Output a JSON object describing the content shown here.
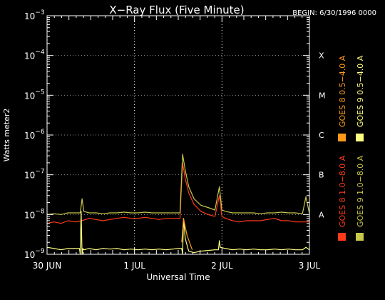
{
  "chart_data": {
    "type": "line",
    "title": "X−Ray Flux (Five Minute)",
    "begin_label": "BEGIN: 6/30/1996 0000",
    "xlabel": "Universal Time",
    "ylabel": "Watts meter2",
    "y_scale": "log",
    "ylim": [
      1e-09,
      0.001
    ],
    "xlim": [
      0,
      3
    ],
    "x_ticks": [
      {
        "value": 0,
        "label": "30 JUN"
      },
      {
        "value": 1,
        "label": "1 JUL"
      },
      {
        "value": 2,
        "label": "2 JUL"
      },
      {
        "value": 3,
        "label": "3 JUL"
      }
    ],
    "y_ticks": [
      {
        "exp": -9,
        "label": "10",
        "sup": "−9"
      },
      {
        "exp": -8,
        "label": "10",
        "sup": "−8"
      },
      {
        "exp": -7,
        "label": "10",
        "sup": "−7"
      },
      {
        "exp": -6,
        "label": "10",
        "sup": "−6"
      },
      {
        "exp": -5,
        "label": "10",
        "sup": "−5"
      },
      {
        "exp": -4,
        "label": "10",
        "sup": "−4"
      },
      {
        "exp": -3,
        "label": "10",
        "sup": "−3"
      }
    ],
    "flare_classes": [
      {
        "label": "A",
        "exp": -8
      },
      {
        "label": "B",
        "exp": -7
      },
      {
        "label": "C",
        "exp": -6
      },
      {
        "label": "M",
        "exp": -5
      },
      {
        "label": "X",
        "exp": -4
      }
    ],
    "grid_x": [
      1,
      2
    ],
    "legend_placement": "right-vertical",
    "legend": [
      {
        "label": "GOES 8 1.0−8.0 A",
        "color": "#ff3b1a"
      },
      {
        "label": "GOES 8 0.5−4.0 A",
        "color": "#ff9a1a"
      },
      {
        "label": "GOES 9 1.0−8.0 A",
        "color": "#c8c84a"
      },
      {
        "label": "GOES 9 0.5−4.0 A",
        "color": "#ffff80"
      }
    ],
    "series": [
      {
        "name": "GOES 8 1.0−8.0 A",
        "color": "#ff3b1a",
        "x": [
          0.0,
          0.08,
          0.16,
          0.24,
          0.32,
          0.4,
          0.48,
          0.56,
          0.64,
          0.72,
          0.8,
          0.88,
          0.96,
          1.04,
          1.12,
          1.2,
          1.28,
          1.36,
          1.44,
          1.52,
          1.55,
          1.58,
          1.62,
          1.68,
          1.76,
          1.84,
          1.92,
          1.97,
          2.0,
          2.04,
          2.12,
          2.2,
          2.28,
          2.36,
          2.44,
          2.52,
          2.6,
          2.68,
          2.76,
          2.84,
          2.92,
          3.0
        ],
        "y": [
          6e-09,
          6.5e-09,
          6e-09,
          7e-09,
          6.5e-09,
          7e-09,
          8e-09,
          7.5e-09,
          7e-09,
          7.5e-09,
          8e-09,
          8.5e-09,
          8e-09,
          8e-09,
          8.5e-09,
          8e-09,
          7.5e-09,
          8e-09,
          8e-09,
          8e-09,
          2e-07,
          8e-08,
          3.5e-08,
          1.8e-08,
          1.2e-08,
          1e-08,
          9e-09,
          3e-08,
          9e-09,
          8e-09,
          7e-09,
          6.5e-09,
          7e-09,
          7e-09,
          7e-09,
          7.5e-09,
          8e-09,
          7e-09,
          7e-09,
          6.5e-09,
          6.5e-09,
          6.5e-09
        ]
      },
      {
        "name": "GOES 8 0.5−4.0 A",
        "color": "#ff9a1a",
        "x": [
          1.54,
          1.56,
          1.6,
          1.66
        ],
        "y": [
          2e-09,
          8e-09,
          3e-09,
          1.3e-09
        ]
      },
      {
        "name": "GOES 9 1.0−8.0 A",
        "color": "#c8c84a",
        "x": [
          0.0,
          0.08,
          0.16,
          0.24,
          0.32,
          0.38,
          0.4,
          0.42,
          0.48,
          0.56,
          0.64,
          0.72,
          0.8,
          0.88,
          0.96,
          1.04,
          1.12,
          1.2,
          1.28,
          1.36,
          1.44,
          1.52,
          1.55,
          1.58,
          1.62,
          1.68,
          1.76,
          1.84,
          1.92,
          1.97,
          2.0,
          2.04,
          2.12,
          2.2,
          2.28,
          2.36,
          2.44,
          2.52,
          2.6,
          2.68,
          2.76,
          2.84,
          2.92,
          2.96,
          3.0
        ],
        "y": [
          1e-08,
          1.05e-08,
          1e-08,
          1.1e-08,
          1.1e-08,
          1.1e-08,
          2.5e-08,
          1.2e-08,
          1.1e-08,
          1.1e-08,
          1.05e-08,
          1.1e-08,
          1.1e-08,
          1.15e-08,
          1.1e-08,
          1.1e-08,
          1.15e-08,
          1.1e-08,
          1.1e-08,
          1.1e-08,
          1.1e-08,
          1.1e-08,
          3.3e-07,
          1.3e-07,
          5e-08,
          2.5e-08,
          1.7e-08,
          1.5e-08,
          1.3e-08,
          5e-08,
          1.3e-08,
          1.2e-08,
          1.1e-08,
          1.1e-08,
          1.1e-08,
          1.1e-08,
          1.05e-08,
          1.1e-08,
          1.1e-08,
          1.15e-08,
          1.1e-08,
          1.1e-08,
          1.05e-08,
          2.8e-08,
          1.05e-08
        ]
      },
      {
        "name": "GOES 9 0.5−4.0 A",
        "color": "#ffff80",
        "x": [
          0.0,
          0.08,
          0.16,
          0.24,
          0.32,
          0.37,
          0.38,
          0.39,
          0.4,
          0.41,
          0.42,
          0.48,
          0.56,
          0.64,
          0.72,
          0.8,
          0.88,
          0.96,
          1.04,
          1.12,
          1.2,
          1.28,
          1.36,
          1.44,
          1.5,
          1.54,
          1.55,
          1.56,
          1.58,
          1.62,
          1.68,
          1.76,
          1.84,
          1.92,
          1.96,
          1.97,
          1.98,
          2.04,
          2.12,
          2.2,
          2.28,
          2.36,
          2.44,
          2.52,
          2.6,
          2.68,
          2.76,
          2.84,
          2.92,
          2.96,
          3.0
        ],
        "y": [
          1.5e-09,
          1.4e-09,
          1.3e-09,
          1.4e-09,
          1.4e-09,
          1.4e-09,
          1e-09,
          1.2e-08,
          1e-09,
          1.4e-09,
          1.3e-09,
          1.4e-09,
          1.3e-09,
          1.4e-09,
          1.35e-09,
          1.4e-09,
          1.3e-09,
          1.35e-09,
          1.3e-09,
          1.35e-09,
          1.3e-09,
          1.35e-09,
          1.3e-09,
          1.35e-09,
          1.4e-09,
          1.4e-09,
          1e-09,
          8e-09,
          2.5e-09,
          1.2e-09,
          1.1e-09,
          1.2e-09,
          1.25e-09,
          1.3e-09,
          1.3e-09,
          2.2e-09,
          1.5e-09,
          1.4e-09,
          1.3e-09,
          1.35e-09,
          1.3e-09,
          1.35e-09,
          1.3e-09,
          1.3e-09,
          1.35e-09,
          1.3e-09,
          1.35e-09,
          1.3e-09,
          1.3e-09,
          1.5e-09,
          1.3e-09
        ]
      }
    ]
  }
}
